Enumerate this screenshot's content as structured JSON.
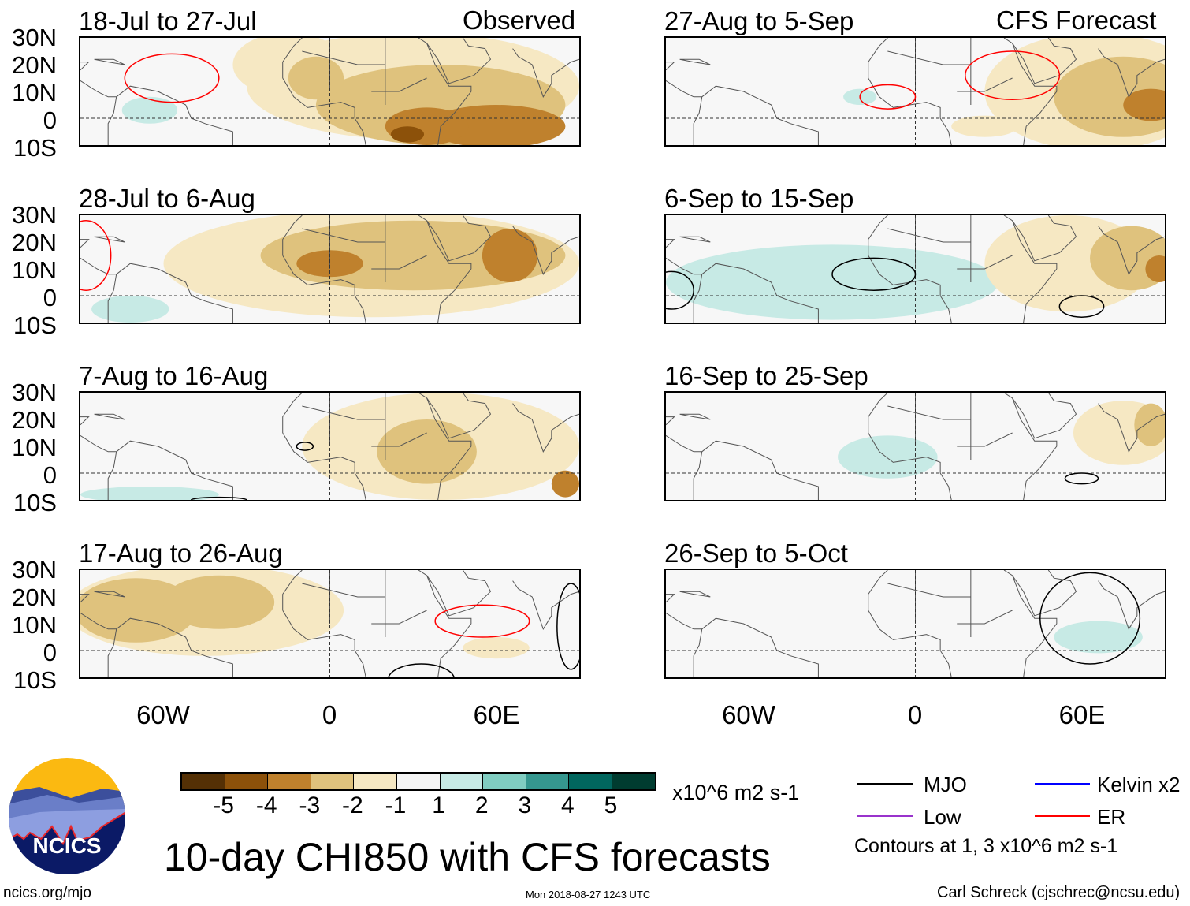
{
  "headers": {
    "left": "Observed",
    "right": "CFS Forecast"
  },
  "panels_left": [
    {
      "title": "18-Jul to 27-Jul"
    },
    {
      "title": "28-Jul to 6-Aug"
    },
    {
      "title": "7-Aug to 16-Aug"
    },
    {
      "title": "17-Aug to 26-Aug"
    }
  ],
  "panels_right": [
    {
      "title": "27-Aug to 5-Sep"
    },
    {
      "title": "6-Sep to 15-Sep"
    },
    {
      "title": "16-Sep to 25-Sep"
    },
    {
      "title": "26-Sep to 5-Oct"
    }
  ],
  "lat_labels": [
    "30N",
    "20N",
    "10N",
    "0",
    "10S"
  ],
  "lon_labels": [
    "60W",
    "0",
    "60E"
  ],
  "colorbar": {
    "colors": [
      "#543005",
      "#8c510a",
      "#bf812d",
      "#dfc27d",
      "#f6e8c3",
      "#f5f5f5",
      "#c7eae5",
      "#80cdc1",
      "#35978f",
      "#01665e",
      "#003c30"
    ],
    "labels": [
      "-5",
      "-4",
      "-3",
      "-2",
      "-1",
      "1",
      "2",
      "3",
      "4",
      "5"
    ],
    "units": "x10^6 m2 s-1"
  },
  "legend": {
    "items": [
      {
        "label": "MJO",
        "color": "#000000"
      },
      {
        "label": "Kelvin x2",
        "color": "#0000ff"
      },
      {
        "label": "Low",
        "color": "#9933cc"
      },
      {
        "label": "ER",
        "color": "#ff0000"
      }
    ],
    "contours_note": "Contours at 1, 3 x10^6 m2 s-1"
  },
  "main_title": "10-day CHI850 with CFS forecasts",
  "logo": {
    "text": "NCICS"
  },
  "footer": {
    "url": "ncics.org/mjo",
    "timestamp": "Mon 2018-08-27 1243 UTC",
    "credit": "Carl Schreck (cjschrec@ncsu.edu)"
  }
}
